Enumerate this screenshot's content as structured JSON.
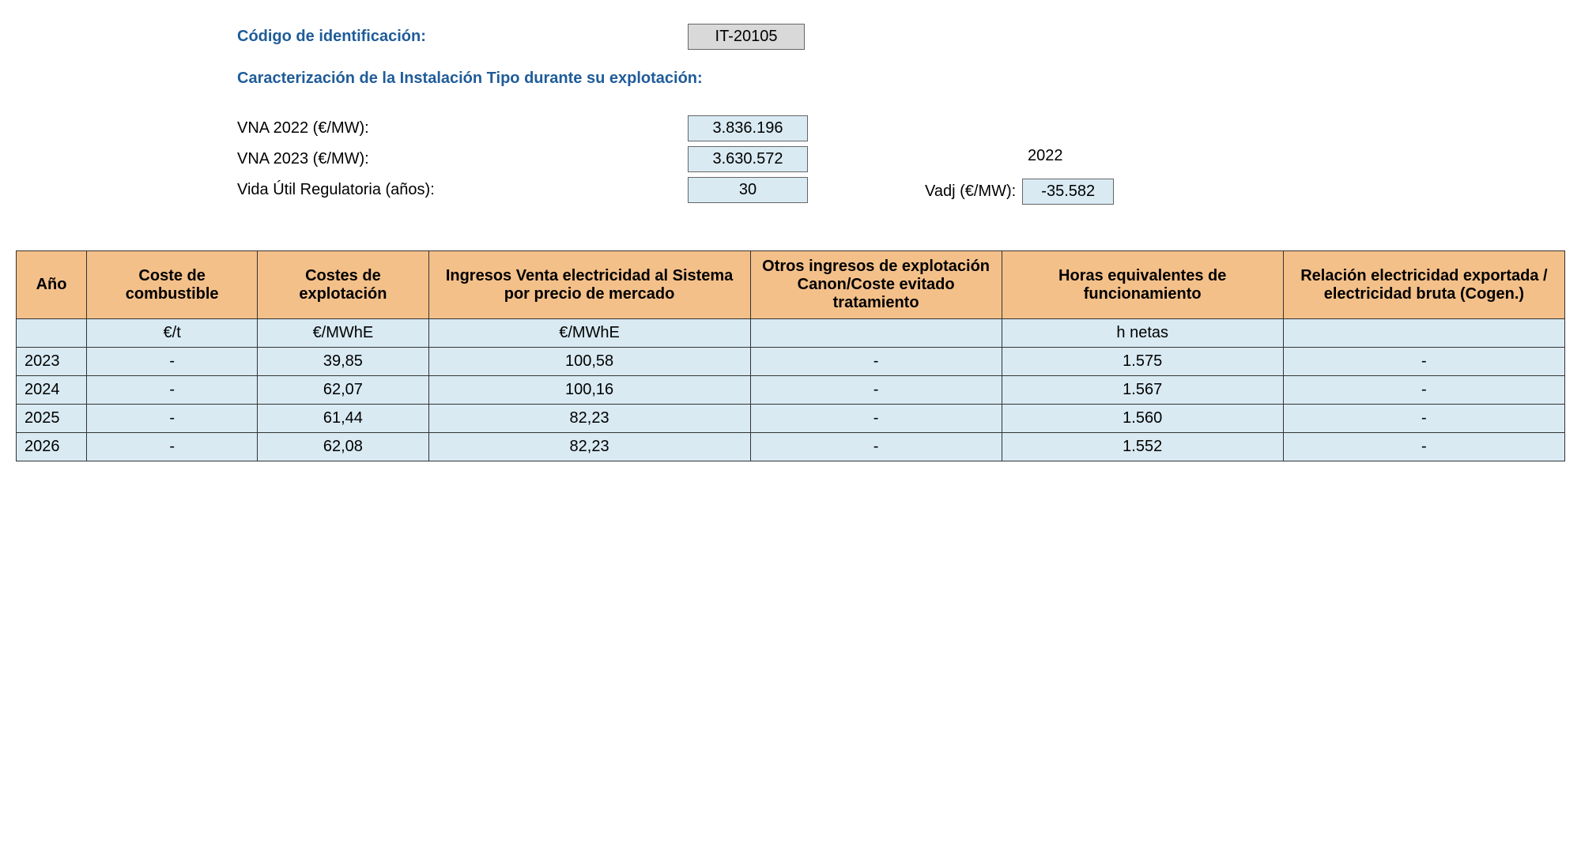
{
  "header": {
    "code_label": "Código de identificación:",
    "code_value": "IT-20105",
    "subtitle": "Caracterización de la Instalación Tipo durante su explotación:"
  },
  "params": {
    "vna2022_label": "VNA 2022 (€/MW):",
    "vna2022_value": "3.836.196",
    "vna2023_label": "VNA 2023 (€/MW):",
    "vna2023_value": "3.630.572",
    "life_label": "Vida Útil Regulatoria (años):",
    "life_value": "30",
    "ref_year": "2022",
    "vadj_label": "Vadj (€/MW):",
    "vadj_value": "-35.582"
  },
  "table": {
    "columns": [
      "Año",
      "Coste de combustible",
      "Costes de explotación",
      "Ingresos Venta electricidad al Sistema por precio de mercado",
      "Otros ingresos de explotación Canon/Coste evitado tratamiento",
      "Horas equivalentes de funcionamiento",
      "Relación electricidad exportada / electricidad bruta\n(Cogen.)"
    ],
    "units": [
      "",
      "€/t",
      "€/MWhE",
      "€/MWhE",
      "",
      "h netas",
      ""
    ],
    "rows": [
      [
        "2023",
        "-",
        "39,85",
        "100,58",
        "-",
        "1.575",
        "-"
      ],
      [
        "2024",
        "-",
        "62,07",
        "100,16",
        "-",
        "1.567",
        "-"
      ],
      [
        "2025",
        "-",
        "61,44",
        "82,23",
        "-",
        "1.560",
        "-"
      ],
      [
        "2026",
        "-",
        "62,08",
        "82,23",
        "-",
        "1.552",
        "-"
      ]
    ],
    "header_bg": "#f4c089",
    "cell_bg": "#d9eaf3",
    "border_color": "#333333"
  }
}
